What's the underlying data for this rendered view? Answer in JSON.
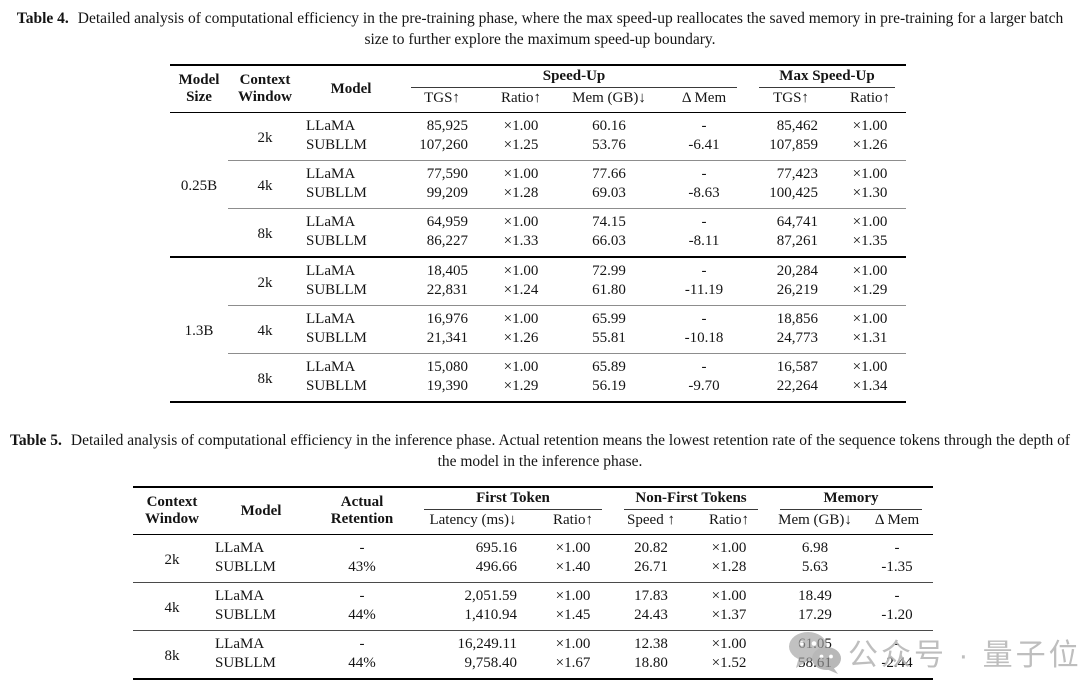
{
  "caption4": {
    "label": "Table 4.",
    "text": "Detailed analysis of computational efficiency in the pre-training phase, where the max speed-up reallocates the saved memory in pre-training for a larger batch size to further explore the maximum speed-up boundary."
  },
  "caption5": {
    "label": "Table 5.",
    "text": "Detailed analysis of computational efficiency in the inference phase. Actual retention means the lowest retention rate of the sequence tokens through the depth of the model in the inference phase."
  },
  "table4": {
    "col_headers": [
      "Model Size",
      "Context Window",
      "Model"
    ],
    "span_headers": [
      "Speed-Up",
      "Max Speed-Up"
    ],
    "sub_headers": [
      "TGS↑",
      "Ratio↑",
      "Mem (GB)↓",
      "Δ Mem",
      "TGS↑",
      "Ratio↑"
    ],
    "sections": [
      {
        "size": "0.25B",
        "groups": [
          {
            "window": "2k",
            "rows": [
              [
                "LLaMA",
                "85,925",
                "×1.00",
                "60.16",
                "-",
                "85,462",
                "×1.00"
              ],
              [
                "SUBLLM",
                "107,260",
                "×1.25",
                "53.76",
                "-6.41",
                "107,859",
                "×1.26"
              ]
            ]
          },
          {
            "window": "4k",
            "rows": [
              [
                "LLaMA",
                "77,590",
                "×1.00",
                "77.66",
                "-",
                "77,423",
                "×1.00"
              ],
              [
                "SUBLLM",
                "99,209",
                "×1.28",
                "69.03",
                "-8.63",
                "100,425",
                "×1.30"
              ]
            ]
          },
          {
            "window": "8k",
            "rows": [
              [
                "LLaMA",
                "64,959",
                "×1.00",
                "74.15",
                "-",
                "64,741",
                "×1.00"
              ],
              [
                "SUBLLM",
                "86,227",
                "×1.33",
                "66.03",
                "-8.11",
                "87,261",
                "×1.35"
              ]
            ]
          }
        ]
      },
      {
        "size": "1.3B",
        "groups": [
          {
            "window": "2k",
            "rows": [
              [
                "LLaMA",
                "18,405",
                "×1.00",
                "72.99",
                "-",
                "20,284",
                "×1.00"
              ],
              [
                "SUBLLM",
                "22,831",
                "×1.24",
                "61.80",
                "-11.19",
                "26,219",
                "×1.29"
              ]
            ]
          },
          {
            "window": "4k",
            "rows": [
              [
                "LLaMA",
                "16,976",
                "×1.00",
                "65.99",
                "-",
                "18,856",
                "×1.00"
              ],
              [
                "SUBLLM",
                "21,341",
                "×1.26",
                "55.81",
                "-10.18",
                "24,773",
                "×1.31"
              ]
            ]
          },
          {
            "window": "8k",
            "rows": [
              [
                "LLaMA",
                "15,080",
                "×1.00",
                "65.89",
                "-",
                "16,587",
                "×1.00"
              ],
              [
                "SUBLLM",
                "19,390",
                "×1.29",
                "56.19",
                "-9.70",
                "22,264",
                "×1.34"
              ]
            ]
          }
        ]
      }
    ]
  },
  "table5": {
    "col_headers": [
      "Context Window",
      "Model",
      "Actual Retention"
    ],
    "span_headers": [
      "First Token",
      "Non-First Tokens",
      "Memory"
    ],
    "sub_headers": [
      "Latency (ms)↓",
      "Ratio↑",
      "Speed ↑",
      "Ratio↑",
      "Mem (GB)↓",
      "Δ Mem"
    ],
    "groups": [
      {
        "window": "2k",
        "rows": [
          [
            "LLaMA",
            "-",
            "695.16",
            "×1.00",
            "20.82",
            "×1.00",
            "6.98",
            "-"
          ],
          [
            "SUBLLM",
            "43%",
            "496.66",
            "×1.40",
            "26.71",
            "×1.28",
            "5.63",
            "-1.35"
          ]
        ]
      },
      {
        "window": "4k",
        "rows": [
          [
            "LLaMA",
            "-",
            "2,051.59",
            "×1.00",
            "17.83",
            "×1.00",
            "18.49",
            "-"
          ],
          [
            "SUBLLM",
            "44%",
            "1,410.94",
            "×1.45",
            "24.43",
            "×1.37",
            "17.29",
            "-1.20"
          ]
        ]
      },
      {
        "window": "8k",
        "rows": [
          [
            "LLaMA",
            "-",
            "16,249.11",
            "×1.00",
            "12.38",
            "×1.00",
            "61.05",
            "-"
          ],
          [
            "SUBLLM",
            "44%",
            "9,758.40",
            "×1.67",
            "18.80",
            "×1.52",
            "58.61",
            "-2.44"
          ]
        ]
      }
    ]
  },
  "watermark": {
    "icon": "wechat-icon",
    "text": "公众号 · 量子位",
    "color": "#b3b3b3"
  }
}
